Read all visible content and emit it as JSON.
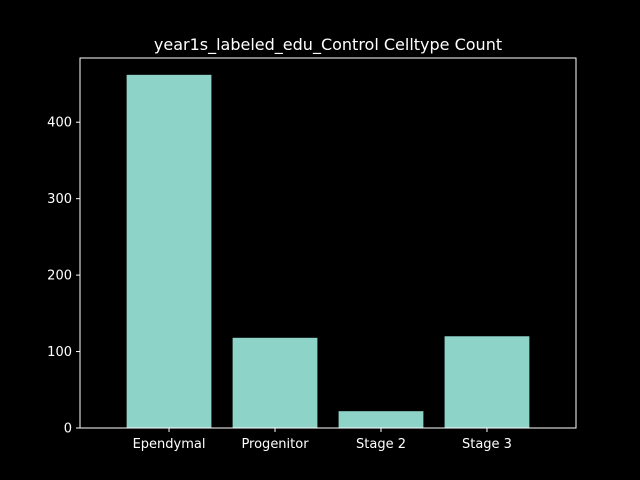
{
  "chart_data": {
    "type": "bar",
    "title": "year1s_labeled_edu_Control Celltype Count",
    "xlabel": "",
    "ylabel": "",
    "categories": [
      "Ependymal",
      "Progenitor",
      "Stage 2",
      "Stage 3"
    ],
    "values": [
      462,
      118,
      22,
      120
    ],
    "ylim": [
      0,
      484
    ],
    "yticks": [
      0,
      100,
      200,
      300,
      400
    ],
    "grid": false,
    "legend": "none",
    "colors": {
      "background": "#000000",
      "bar": "#8dd3c7",
      "axes": "#ffffff",
      "text": "#ffffff"
    }
  }
}
